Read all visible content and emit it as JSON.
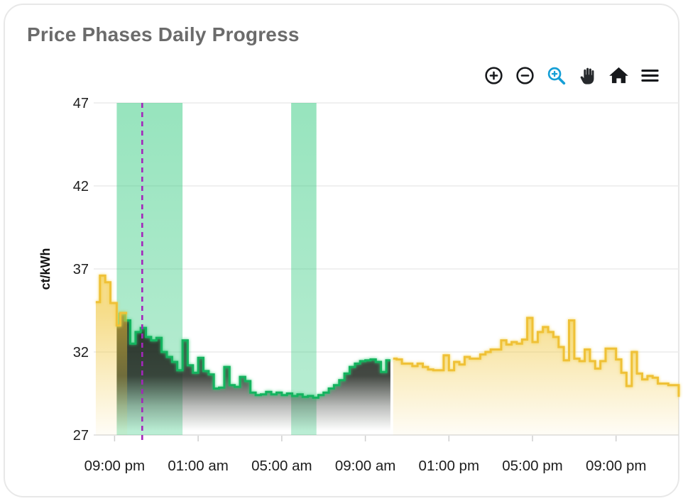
{
  "card": {
    "title": "Price Phases Daily Progress"
  },
  "toolbar": {
    "icons": [
      {
        "name": "zoom-in-icon"
      },
      {
        "name": "zoom-out-icon"
      },
      {
        "name": "selection-zoom-icon"
      },
      {
        "name": "pan-icon"
      },
      {
        "name": "home-icon"
      },
      {
        "name": "menu-icon"
      }
    ],
    "active_icon": "selection-zoom-icon"
  },
  "colors": {
    "yellow_line": "#efc137",
    "green_line": "#14b35f",
    "dark_fill": "#20261f",
    "band_green": "#2fc97c",
    "now_purple": "#a327bb",
    "toolbar_active_blue": "#169fd6",
    "grid": "#ececec",
    "axis_text": "#1d1d1d",
    "title_gray": "#6b6b6b"
  },
  "chart_data": {
    "type": "area",
    "title": "Price Phases Daily Progress",
    "ylabel": "ct/kWh",
    "ylim": [
      27,
      47
    ],
    "yticks": [
      47,
      42,
      37,
      32,
      27
    ],
    "grid": "horizontal",
    "legend": "none",
    "x_unit": "hours_after_08:00_pm",
    "xlim": [
      0,
      28
    ],
    "xticks": [
      {
        "t": 1,
        "label": "09:00 pm"
      },
      {
        "t": 5,
        "label": "01:00 am"
      },
      {
        "t": 9,
        "label": "05:00 am"
      },
      {
        "t": 13,
        "label": "09:00 am"
      },
      {
        "t": 17,
        "label": "01:00 pm"
      },
      {
        "t": 21,
        "label": "05:00 pm"
      },
      {
        "t": 25,
        "label": "09:00 pm"
      }
    ],
    "bands": {
      "color": "#2fc97c",
      "opacity": 0.5,
      "ranges": [
        {
          "from": 1.1,
          "to": 4.25
        },
        {
          "from": 9.45,
          "to": 10.66
        }
      ]
    },
    "now_line": {
      "t": 2.32,
      "color": "#a327bb",
      "style": "dashed"
    },
    "series": [
      {
        "name": "price-expensive-evening",
        "stroke": "#efc137",
        "fill": "yellow",
        "glow": "yellow",
        "layer": 2,
        "end": 1.6,
        "points": [
          [
            0.1,
            35.0
          ],
          [
            0.3,
            36.6
          ],
          [
            0.55,
            36.2
          ],
          [
            0.8,
            34.95
          ],
          [
            1.1,
            33.6
          ],
          [
            1.27,
            34.35
          ]
        ]
      },
      {
        "name": "price-cheap-phase",
        "stroke": "#14b35f",
        "fill": "dark",
        "glow": "green",
        "layer": 1,
        "end": 14.2,
        "points": [
          [
            1.1,
            33.6
          ],
          [
            1.25,
            34.3
          ],
          [
            1.5,
            33.9
          ],
          [
            1.75,
            32.5
          ],
          [
            2.0,
            33.2
          ],
          [
            2.25,
            33.45
          ],
          [
            2.5,
            32.9
          ],
          [
            2.75,
            32.7
          ],
          [
            3.0,
            32.85
          ],
          [
            3.25,
            32.0
          ],
          [
            3.5,
            31.7
          ],
          [
            3.75,
            31.4
          ],
          [
            4.0,
            30.9
          ],
          [
            4.25,
            32.7
          ],
          [
            4.5,
            31.2
          ],
          [
            4.75,
            30.75
          ],
          [
            5.0,
            31.65
          ],
          [
            5.25,
            30.85
          ],
          [
            5.5,
            30.65
          ],
          [
            5.75,
            29.8
          ],
          [
            6.0,
            29.85
          ],
          [
            6.25,
            31.1
          ],
          [
            6.5,
            30.0
          ],
          [
            6.75,
            29.9
          ],
          [
            7.0,
            30.5
          ],
          [
            7.25,
            30.25
          ],
          [
            7.5,
            29.55
          ],
          [
            7.75,
            29.4
          ],
          [
            8.0,
            29.45
          ],
          [
            8.25,
            29.6
          ],
          [
            8.5,
            29.45
          ],
          [
            8.75,
            29.55
          ],
          [
            9.0,
            29.4
          ],
          [
            9.25,
            29.5
          ],
          [
            9.5,
            29.35
          ],
          [
            9.75,
            29.45
          ],
          [
            10.0,
            29.3
          ],
          [
            10.25,
            29.35
          ],
          [
            10.5,
            29.25
          ],
          [
            10.75,
            29.4
          ],
          [
            11.0,
            29.55
          ],
          [
            11.25,
            29.8
          ],
          [
            11.5,
            30.0
          ],
          [
            11.75,
            30.3
          ],
          [
            12.0,
            30.7
          ],
          [
            12.25,
            31.1
          ],
          [
            12.5,
            31.3
          ],
          [
            12.75,
            31.45
          ],
          [
            13.0,
            31.5
          ],
          [
            13.25,
            31.55
          ],
          [
            13.5,
            31.4
          ],
          [
            13.75,
            30.8
          ],
          [
            14.0,
            31.5
          ]
        ]
      },
      {
        "name": "price-expensive-daytime",
        "stroke": "#efc137",
        "fill": "yellow",
        "glow": "yellow",
        "layer": 2,
        "end": 28,
        "points": [
          [
            14.33,
            31.6
          ],
          [
            14.5,
            31.55
          ],
          [
            14.75,
            31.3
          ],
          [
            15.0,
            31.3
          ],
          [
            15.25,
            31.15
          ],
          [
            15.5,
            31.3
          ],
          [
            15.75,
            31.1
          ],
          [
            16.0,
            30.95
          ],
          [
            16.25,
            30.9
          ],
          [
            16.5,
            30.9
          ],
          [
            16.75,
            31.8
          ],
          [
            17.0,
            30.9
          ],
          [
            17.25,
            31.4
          ],
          [
            17.5,
            31.25
          ],
          [
            17.75,
            31.7
          ],
          [
            18.0,
            31.6
          ],
          [
            18.25,
            31.6
          ],
          [
            18.5,
            31.85
          ],
          [
            18.75,
            32.0
          ],
          [
            19.0,
            32.15
          ],
          [
            19.25,
            32.15
          ],
          [
            19.5,
            32.7
          ],
          [
            19.75,
            32.45
          ],
          [
            20.0,
            32.6
          ],
          [
            20.25,
            32.5
          ],
          [
            20.5,
            32.75
          ],
          [
            20.75,
            34.05
          ],
          [
            21.0,
            32.6
          ],
          [
            21.25,
            33.2
          ],
          [
            21.5,
            33.5
          ],
          [
            21.75,
            33.2
          ],
          [
            22.0,
            32.9
          ],
          [
            22.25,
            32.3
          ],
          [
            22.5,
            31.5
          ],
          [
            22.75,
            33.9
          ],
          [
            23.0,
            31.6
          ],
          [
            23.25,
            31.45
          ],
          [
            23.5,
            32.15
          ],
          [
            23.75,
            31.45
          ],
          [
            24.0,
            31.0
          ],
          [
            24.25,
            31.45
          ],
          [
            24.5,
            32.2
          ],
          [
            25.0,
            31.55
          ],
          [
            25.25,
            30.75
          ],
          [
            25.5,
            29.95
          ],
          [
            25.75,
            32.0
          ],
          [
            26.0,
            30.7
          ],
          [
            26.25,
            30.35
          ],
          [
            26.5,
            30.55
          ],
          [
            26.75,
            30.45
          ],
          [
            27.0,
            30.1
          ],
          [
            27.25,
            30.1
          ],
          [
            27.5,
            30.0
          ],
          [
            28.0,
            29.3
          ]
        ]
      }
    ]
  }
}
